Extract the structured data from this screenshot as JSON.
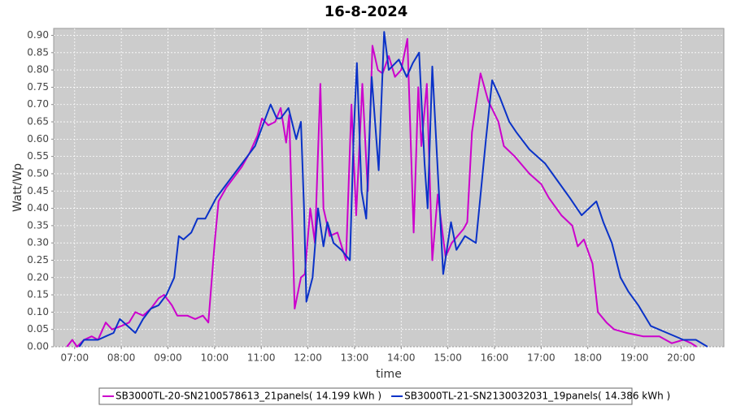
{
  "chart_data": {
    "type": "line",
    "title": "16-8-2024",
    "x_label": "time",
    "y_label": "Watt/Wp",
    "grid": true,
    "legend_position": "bottom",
    "xlim": [
      "06:33",
      "20:55"
    ],
    "xticks": [
      "07:00",
      "08:00",
      "09:00",
      "10:00",
      "11:00",
      "12:00",
      "13:00",
      "14:00",
      "15:00",
      "16:00",
      "17:00",
      "18:00",
      "19:00",
      "20:00"
    ],
    "ylim": [
      0,
      0.92
    ],
    "yticks": [
      {
        "value": 0,
        "label": "0.00"
      },
      0.05,
      {
        "value": 0.1,
        "label": "0.10"
      },
      0.15,
      {
        "value": 0.2,
        "label": "0.20"
      },
      0.25,
      {
        "value": 0.3,
        "label": "0.30"
      },
      0.35,
      {
        "value": 0.4,
        "label": "0.40"
      },
      0.45,
      {
        "value": 0.5,
        "label": "0.50"
      },
      0.55,
      {
        "value": 0.6,
        "label": "0.60"
      },
      0.65,
      {
        "value": 0.7,
        "label": "0.70"
      },
      0.75,
      {
        "value": 0.8,
        "label": "0.80"
      },
      0.85,
      {
        "value": 0.9,
        "label": "0.90"
      }
    ],
    "series": [
      {
        "name": "SB3000TL-20-SN2100578613_21panels( 14.199 kWh )",
        "color": "#cc00cc",
        "x": [
          "06:50",
          "06:57",
          "07:03",
          "07:12",
          "07:22",
          "07:30",
          "07:40",
          "07:48",
          "08:00",
          "08:10",
          "08:18",
          "08:28",
          "08:38",
          "08:48",
          "08:55",
          "09:05",
          "09:12",
          "09:25",
          "09:35",
          "09:45",
          "09:52",
          "10:00",
          "10:05",
          "10:15",
          "10:25",
          "10:35",
          "10:45",
          "10:55",
          "11:01",
          "11:09",
          "11:18",
          "11:25",
          "11:32",
          "11:36",
          "11:43",
          "11:51",
          "11:56",
          "12:03",
          "12:09",
          "12:16",
          "12:20",
          "12:28",
          "12:38",
          "12:49",
          "12:56",
          "13:02",
          "13:10",
          "13:17",
          "13:23",
          "13:30",
          "13:36",
          "13:44",
          "13:52",
          "14:00",
          "14:08",
          "14:16",
          "14:22",
          "14:26",
          "14:33",
          "14:40",
          "14:47",
          "14:57",
          "15:05",
          "15:20",
          "15:25",
          "15:31",
          "15:42",
          "15:52",
          "16:05",
          "16:12",
          "16:26",
          "16:45",
          "17:00",
          "17:10",
          "17:26",
          "17:40",
          "17:47",
          "17:55",
          "18:06",
          "18:13",
          "18:24",
          "18:34",
          "18:50",
          "19:11",
          "19:32",
          "19:48",
          "20:03",
          "20:13",
          "20:20"
        ],
        "values": [
          0.0,
          0.02,
          0.0,
          0.02,
          0.03,
          0.02,
          0.07,
          0.05,
          0.06,
          0.07,
          0.1,
          0.09,
          0.11,
          0.14,
          0.15,
          0.12,
          0.09,
          0.09,
          0.08,
          0.09,
          0.07,
          0.3,
          0.42,
          0.46,
          0.49,
          0.52,
          0.56,
          0.61,
          0.66,
          0.64,
          0.65,
          0.69,
          0.59,
          0.67,
          0.11,
          0.2,
          0.21,
          0.4,
          0.3,
          0.76,
          0.4,
          0.32,
          0.33,
          0.25,
          0.7,
          0.38,
          0.76,
          0.45,
          0.87,
          0.8,
          0.79,
          0.84,
          0.78,
          0.8,
          0.89,
          0.33,
          0.75,
          0.58,
          0.76,
          0.25,
          0.44,
          0.26,
          0.3,
          0.34,
          0.36,
          0.62,
          0.79,
          0.71,
          0.65,
          0.58,
          0.55,
          0.5,
          0.47,
          0.43,
          0.38,
          0.35,
          0.29,
          0.31,
          0.24,
          0.1,
          0.07,
          0.05,
          0.04,
          0.03,
          0.03,
          0.01,
          0.02,
          0.01,
          0.0
        ]
      },
      {
        "name": "SB3000TL-21-SN2130032031_19panels( 14.386 kWh )",
        "color": "#0a32c8",
        "x": [
          "07:06",
          "07:12",
          "07:20",
          "07:30",
          "07:40",
          "07:50",
          "07:58",
          "08:08",
          "08:18",
          "08:28",
          "08:38",
          "08:48",
          "08:58",
          "09:08",
          "09:14",
          "09:20",
          "09:30",
          "09:38",
          "09:48",
          "09:55",
          "10:02",
          "10:12",
          "10:22",
          "10:32",
          "10:42",
          "10:52",
          "11:02",
          "11:12",
          "11:20",
          "11:25",
          "11:35",
          "11:45",
          "11:51",
          "11:55",
          "11:58",
          "12:06",
          "12:13",
          "12:20",
          "12:25",
          "12:33",
          "12:43",
          "12:54",
          "12:59",
          "13:03",
          "13:09",
          "13:15",
          "13:22",
          "13:31",
          "13:38",
          "13:44",
          "13:57",
          "14:07",
          "14:15",
          "14:23",
          "14:30",
          "14:34",
          "14:40",
          "14:54",
          "15:04",
          "15:11",
          "15:22",
          "15:36",
          "15:49",
          "15:57",
          "16:07",
          "16:19",
          "16:28",
          "16:45",
          "17:05",
          "17:21",
          "17:37",
          "17:52",
          "18:11",
          "18:20",
          "18:31",
          "18:42",
          "18:52",
          "19:05",
          "19:21",
          "19:42",
          "20:03",
          "20:19",
          "20:34"
        ],
        "values": [
          0.0,
          0.02,
          0.02,
          0.02,
          0.03,
          0.04,
          0.08,
          0.06,
          0.04,
          0.08,
          0.11,
          0.12,
          0.15,
          0.2,
          0.32,
          0.31,
          0.33,
          0.37,
          0.37,
          0.4,
          0.43,
          0.46,
          0.49,
          0.52,
          0.55,
          0.58,
          0.64,
          0.7,
          0.66,
          0.66,
          0.69,
          0.6,
          0.65,
          0.4,
          0.13,
          0.2,
          0.4,
          0.29,
          0.36,
          0.3,
          0.28,
          0.25,
          0.62,
          0.82,
          0.45,
          0.37,
          0.78,
          0.51,
          0.91,
          0.8,
          0.83,
          0.78,
          0.82,
          0.85,
          0.53,
          0.4,
          0.81,
          0.21,
          0.36,
          0.28,
          0.32,
          0.3,
          0.6,
          0.77,
          0.72,
          0.65,
          0.62,
          0.57,
          0.53,
          0.48,
          0.43,
          0.38,
          0.42,
          0.36,
          0.3,
          0.2,
          0.16,
          0.12,
          0.06,
          0.04,
          0.02,
          0.02,
          0.0
        ]
      }
    ]
  }
}
